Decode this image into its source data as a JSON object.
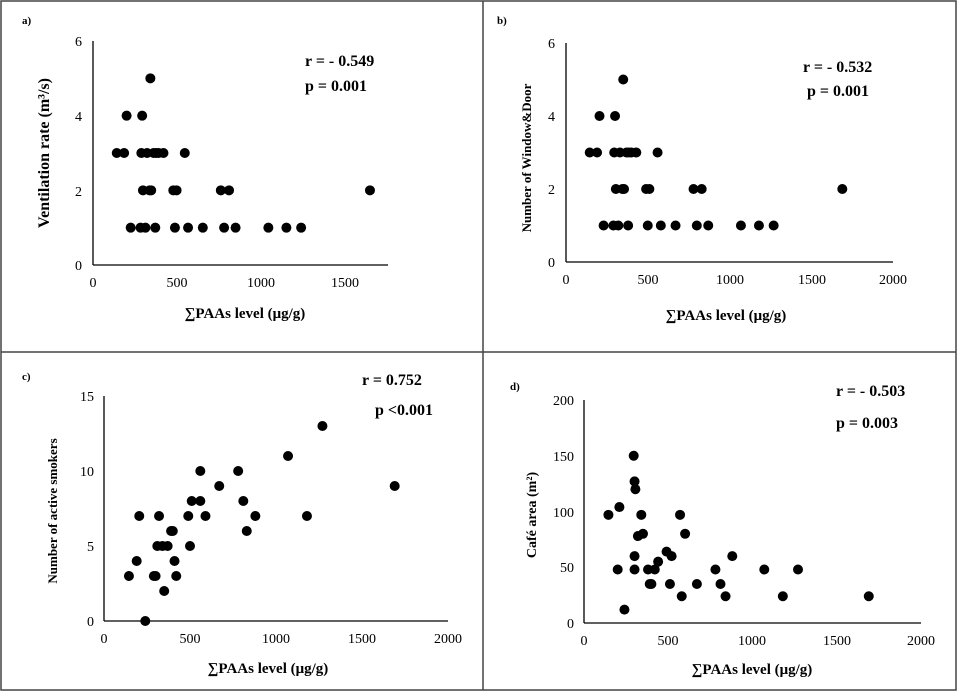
{
  "chart_data": [
    {
      "panel_label": "a)",
      "type": "scatter",
      "title": "",
      "xlabel": "∑PAAs level (μg/g)",
      "ylabel": "Ventilation rate (m³/s)",
      "xlim": [
        0,
        1800
      ],
      "ylim": [
        0,
        6
      ],
      "xticks": [
        "0",
        "500",
        "1000",
        "1500"
      ],
      "yticks": [
        "0",
        "2",
        "4",
        "6"
      ],
      "stats": [
        "r = - 0.549",
        "p = 0.001"
      ],
      "points": [
        [
          145,
          3
        ],
        [
          190,
          3
        ],
        [
          205,
          4
        ],
        [
          230,
          1
        ],
        [
          290,
          1
        ],
        [
          295,
          3
        ],
        [
          300,
          4
        ],
        [
          305,
          2
        ],
        [
          320,
          1
        ],
        [
          330,
          3
        ],
        [
          345,
          2
        ],
        [
          350,
          5
        ],
        [
          355,
          2
        ],
        [
          370,
          3
        ],
        [
          380,
          1
        ],
        [
          385,
          3
        ],
        [
          400,
          3
        ],
        [
          430,
          3
        ],
        [
          490,
          2
        ],
        [
          500,
          1
        ],
        [
          510,
          2
        ],
        [
          560,
          3
        ],
        [
          580,
          1
        ],
        [
          670,
          1
        ],
        [
          780,
          2
        ],
        [
          800,
          1
        ],
        [
          830,
          2
        ],
        [
          870,
          1
        ],
        [
          1070,
          1
        ],
        [
          1180,
          1
        ],
        [
          1270,
          1
        ],
        [
          1690,
          2
        ]
      ]
    },
    {
      "panel_label": "b)",
      "type": "scatter",
      "title": "",
      "xlabel": "∑PAAs level (μg/g)",
      "ylabel": "Number of Window&Door",
      "xlim": [
        0,
        2000
      ],
      "ylim": [
        0,
        6
      ],
      "xticks": [
        "0",
        "500",
        "1000",
        "1500",
        "2000"
      ],
      "yticks": [
        "0",
        "2",
        "4",
        "6"
      ],
      "stats": [
        "r = - 0.532",
        "p = 0.001"
      ],
      "points": [
        [
          145,
          3
        ],
        [
          190,
          3
        ],
        [
          205,
          4
        ],
        [
          230,
          1
        ],
        [
          290,
          1
        ],
        [
          295,
          3
        ],
        [
          300,
          4
        ],
        [
          305,
          2
        ],
        [
          320,
          1
        ],
        [
          330,
          3
        ],
        [
          345,
          2
        ],
        [
          350,
          5
        ],
        [
          355,
          2
        ],
        [
          370,
          3
        ],
        [
          380,
          1
        ],
        [
          385,
          3
        ],
        [
          400,
          3
        ],
        [
          430,
          3
        ],
        [
          490,
          2
        ],
        [
          500,
          1
        ],
        [
          510,
          2
        ],
        [
          560,
          3
        ],
        [
          580,
          1
        ],
        [
          670,
          1
        ],
        [
          780,
          2
        ],
        [
          800,
          1
        ],
        [
          830,
          2
        ],
        [
          870,
          1
        ],
        [
          1070,
          1
        ],
        [
          1180,
          1
        ],
        [
          1270,
          1
        ],
        [
          1690,
          2
        ]
      ]
    },
    {
      "panel_label": "c)",
      "type": "scatter",
      "title": "",
      "xlabel": "∑PAAs level (μg/g)",
      "ylabel": "Number of active smokers",
      "xlim": [
        0,
        2000
      ],
      "ylim": [
        0,
        15
      ],
      "xticks": [
        "0",
        "500",
        "1000",
        "1500",
        "2000"
      ],
      "yticks": [
        "0",
        "5",
        "10",
        "15"
      ],
      "stats": [
        "r = 0.752",
        "p <0.001"
      ],
      "points": [
        [
          145,
          3
        ],
        [
          190,
          4
        ],
        [
          205,
          7
        ],
        [
          240,
          0
        ],
        [
          290,
          3
        ],
        [
          300,
          3
        ],
        [
          310,
          5
        ],
        [
          320,
          7
        ],
        [
          340,
          5
        ],
        [
          350,
          2
        ],
        [
          370,
          5
        ],
        [
          390,
          6
        ],
        [
          400,
          6
        ],
        [
          410,
          4
        ],
        [
          420,
          3
        ],
        [
          490,
          7
        ],
        [
          500,
          5
        ],
        [
          510,
          8
        ],
        [
          560,
          8
        ],
        [
          560,
          10
        ],
        [
          590,
          7
        ],
        [
          670,
          9
        ],
        [
          780,
          10
        ],
        [
          810,
          8
        ],
        [
          830,
          6
        ],
        [
          880,
          7
        ],
        [
          1070,
          11
        ],
        [
          1180,
          7
        ],
        [
          1270,
          13
        ],
        [
          1690,
          9
        ]
      ]
    },
    {
      "panel_label": "d)",
      "type": "scatter",
      "title": "",
      "xlabel": "∑PAAs level (μg/g)",
      "ylabel": "Café area (m²)",
      "xlim": [
        0,
        2000
      ],
      "ylim": [
        0,
        200
      ],
      "xticks": [
        "0",
        "500",
        "1000",
        "1500",
        "2000"
      ],
      "yticks": [
        "0",
        "50",
        "100",
        "150",
        "200"
      ],
      "stats": [
        "r = - 0.503",
        "p = 0.003"
      ],
      "points": [
        [
          145,
          97
        ],
        [
          200,
          48
        ],
        [
          210,
          104
        ],
        [
          240,
          12
        ],
        [
          295,
          150
        ],
        [
          300,
          127
        ],
        [
          305,
          120
        ],
        [
          300,
          60
        ],
        [
          300,
          48
        ],
        [
          320,
          78
        ],
        [
          340,
          97
        ],
        [
          350,
          80
        ],
        [
          380,
          48
        ],
        [
          390,
          35
        ],
        [
          400,
          35
        ],
        [
          420,
          48
        ],
        [
          440,
          55
        ],
        [
          490,
          64
        ],
        [
          510,
          35
        ],
        [
          520,
          60
        ],
        [
          570,
          97
        ],
        [
          580,
          24
        ],
        [
          600,
          80
        ],
        [
          670,
          35
        ],
        [
          780,
          48
        ],
        [
          810,
          35
        ],
        [
          840,
          24
        ],
        [
          880,
          60
        ],
        [
          1070,
          48
        ],
        [
          1180,
          24
        ],
        [
          1270,
          48
        ],
        [
          1690,
          24
        ]
      ]
    }
  ]
}
